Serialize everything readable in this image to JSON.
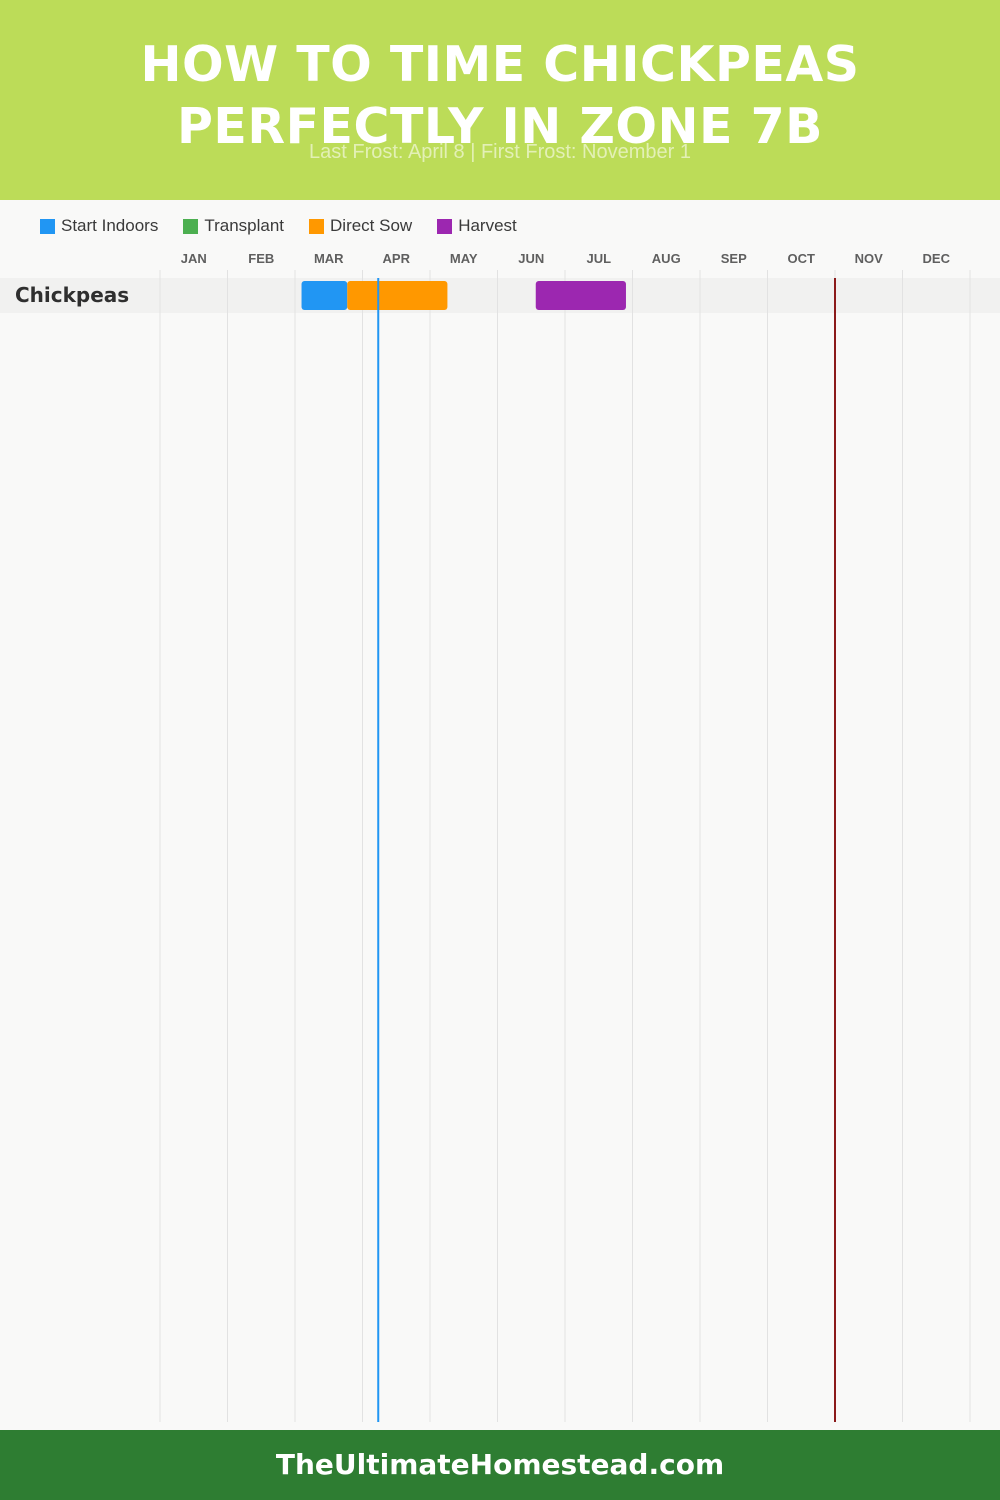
{
  "header": {
    "title_line1": "How to Time Chickpeas",
    "title_line2": "Perfectly in Zone 7B",
    "subtitle": "Last Frost: April 8 | First Frost: November 1"
  },
  "colors": {
    "header_bg": "#bcdc58",
    "footer_bg": "#2e7d32",
    "start_indoors": "#2196f3",
    "transplant": "#4caf50",
    "direct_sow": "#ff9800",
    "harvest": "#9c27b0",
    "last_frost_line": "#2196f3",
    "first_frost_line": "#8b1a1a"
  },
  "legend": [
    {
      "label": "Start Indoors",
      "color": "#2196f3"
    },
    {
      "label": "Transplant",
      "color": "#4caf50"
    },
    {
      "label": "Direct Sow",
      "color": "#ff9800"
    },
    {
      "label": "Harvest",
      "color": "#9c27b0"
    }
  ],
  "chart_data": {
    "type": "gantt",
    "months": [
      "JAN",
      "FEB",
      "MAR",
      "APR",
      "MAY",
      "JUN",
      "JUL",
      "AUG",
      "SEP",
      "OCT",
      "NOV",
      "DEC"
    ],
    "rows": [
      {
        "crop": "Chickpeas",
        "segments": [
          {
            "activity": "Start Indoors",
            "start": "03-04",
            "end": "03-25",
            "color": "#2196f3"
          },
          {
            "activity": "Direct Sow",
            "start": "03-25",
            "end": "05-09",
            "color": "#ff9800"
          },
          {
            "activity": "Harvest",
            "start": "06-18",
            "end": "07-29",
            "color": "#9c27b0"
          }
        ]
      }
    ],
    "markers": [
      {
        "name": "Last Frost",
        "date": "04-08",
        "color": "#2196f3"
      },
      {
        "name": "First Frost",
        "date": "11-01",
        "color": "#8b1a1a"
      }
    ]
  },
  "footer": {
    "text": "TheUltimateHomestead.com"
  }
}
